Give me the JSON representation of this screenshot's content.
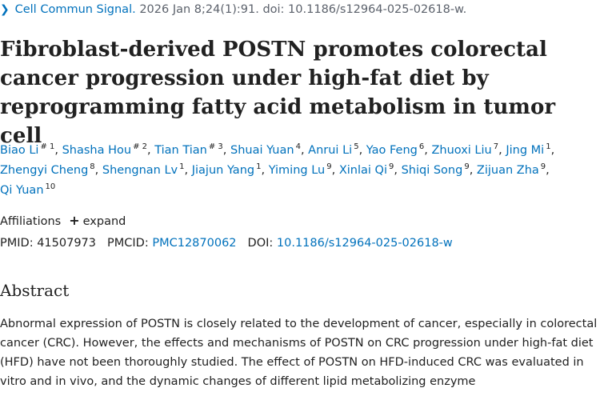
{
  "citation": {
    "chevron": "❯",
    "journal": "Cell Commun Signal.",
    "rest": "2026 Jan 8;24(1):91. doi: 10.1186/s12964-025-02618-w."
  },
  "title": "Fibroblast-derived POSTN promotes colorectal cancer progression under high-fat diet by reprogramming fatty acid metabolism in tumor cell",
  "authors": [
    {
      "name": "Biao Li",
      "sup": "# 1"
    },
    {
      "name": "Shasha Hou",
      "sup": "# 2"
    },
    {
      "name": "Tian Tian",
      "sup": "# 3"
    },
    {
      "name": "Shuai Yuan",
      "sup": "4"
    },
    {
      "name": "Anrui Li",
      "sup": "5"
    },
    {
      "name": "Yao Feng",
      "sup": "6"
    },
    {
      "name": "Zhuoxi Liu",
      "sup": "7"
    },
    {
      "name": "Jing Mi",
      "sup": "1"
    },
    {
      "name": "Zhengyi Cheng",
      "sup": "8"
    },
    {
      "name": "Shengnan Lv",
      "sup": "1"
    },
    {
      "name": "Jiajun Yang",
      "sup": "1"
    },
    {
      "name": "Yiming Lu",
      "sup": "9"
    },
    {
      "name": "Xinlai Qi",
      "sup": "9"
    },
    {
      "name": "Shiqi Song",
      "sup": "9"
    },
    {
      "name": "Zijuan Zha",
      "sup": "9"
    },
    {
      "name": "Qi Yuan",
      "sup": "10"
    }
  ],
  "affiliations": {
    "label": "Affiliations",
    "plus_icon": "+",
    "expand_label": "expand"
  },
  "identifiers": {
    "pmid_label": "PMID:",
    "pmid": "41507973",
    "pmcid_label": "PMCID:",
    "pmcid": "PMC12870062",
    "doi_label": "DOI:",
    "doi": "10.1186/s12964-025-02618-w"
  },
  "abstract": {
    "heading": "Abstract",
    "text": "Abnormal expression of POSTN is closely related to the development of cancer, especially in colorectal cancer (CRC). However, the effects and mechanisms of POSTN on CRC progression under high-fat diet (HFD) have not been thoroughly studied. The effect of POSTN on HFD-induced CRC was evaluated in vitro and in vivo, and the dynamic changes of different lipid metabolizing enzyme"
  }
}
